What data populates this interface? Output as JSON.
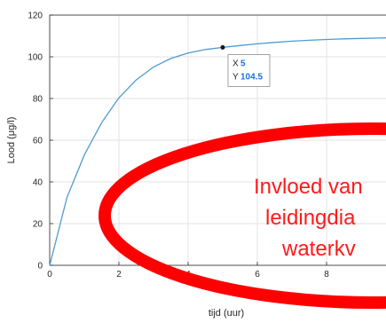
{
  "chart_data": {
    "type": "line",
    "xlabel": "tijd (uur)",
    "ylabel": "Lood (μg/l)",
    "xlim": [
      0,
      10
    ],
    "ylim": [
      0,
      120
    ],
    "x_ticks": [
      "0",
      "2",
      "4",
      "6",
      "8"
    ],
    "y_ticks": [
      "0",
      "20",
      "40",
      "60",
      "80",
      "100",
      "120"
    ],
    "grid": true,
    "series": [
      {
        "color": "#4f9bd1",
        "x": [
          0,
          0.5,
          1,
          1.5,
          2,
          2.5,
          3,
          3.5,
          4,
          4.5,
          5,
          5.5,
          6,
          6.5,
          7,
          7.5,
          8,
          8.5,
          9,
          9.5,
          10
        ],
        "y": [
          0,
          32.6,
          52.9,
          68.4,
          80.3,
          88.9,
          95.1,
          99.2,
          101.8,
          103.5,
          104.5,
          105.4,
          106.2,
          106.9,
          107.5,
          107.9,
          108.3,
          108.6,
          108.8,
          109.0,
          109.2
        ]
      }
    ],
    "datatip": {
      "x_label": "X",
      "x_value": "5",
      "y_label": "Y",
      "y_value": "104.5",
      "x": 5,
      "y": 104.5
    },
    "annotation": {
      "lines": [
        "Invloed van",
        "leidingdia",
        "waterkv"
      ],
      "color": "#ff1a1a"
    }
  }
}
